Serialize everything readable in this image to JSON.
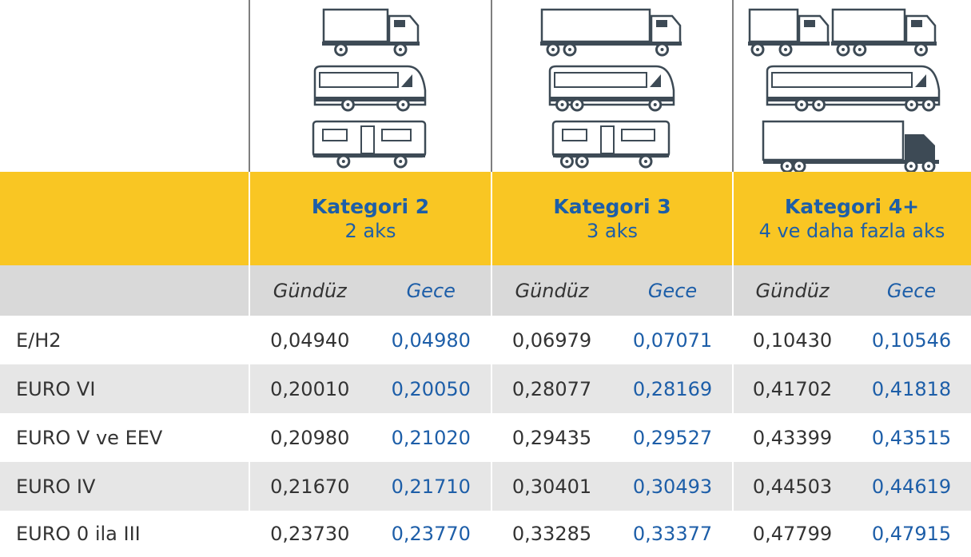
{
  "header": {
    "categories": [
      {
        "title": "Kategori 2",
        "subtitle": "2 aks"
      },
      {
        "title": "Kategori 3",
        "subtitle": "3 aks"
      },
      {
        "title": "Kategori 4+",
        "subtitle": "4 ve daha fazla aks"
      }
    ],
    "periods": [
      "Gündüz",
      "Gece"
    ]
  },
  "table": {
    "rows": [
      {
        "label": "E/H2",
        "values": [
          "0,04940",
          "0,04980",
          "0,06979",
          "0,07071",
          "0,10430",
          "0,10546"
        ]
      },
      {
        "label": "EURO VI",
        "values": [
          "0,20010",
          "0,20050",
          "0,28077",
          "0,28169",
          "0,41702",
          "0,41818"
        ]
      },
      {
        "label": "EURO V ve EEV",
        "values": [
          "0,20980",
          "0,21020",
          "0,29435",
          "0,29527",
          "0,43399",
          "0,43515"
        ]
      },
      {
        "label": "EURO IV",
        "values": [
          "0,21670",
          "0,21710",
          "0,30401",
          "0,30493",
          "0,44503",
          "0,44619"
        ]
      },
      {
        "label": "EURO 0 ila III",
        "values": [
          "0,23730",
          "0,23770",
          "0,33285",
          "0,33377",
          "0,47799",
          "0,47915"
        ]
      }
    ]
  }
}
